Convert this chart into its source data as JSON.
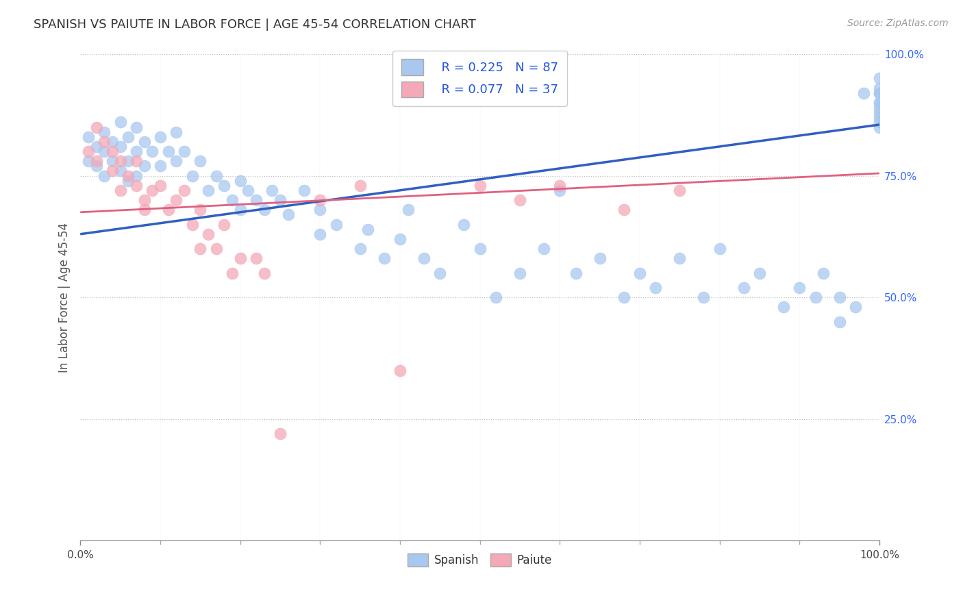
{
  "title": "SPANISH VS PAIUTE IN LABOR FORCE | AGE 45-54 CORRELATION CHART",
  "source_text": "Source: ZipAtlas.com",
  "ylabel": "In Labor Force | Age 45-54",
  "xlim": [
    0.0,
    1.0
  ],
  "ylim": [
    0.0,
    1.0
  ],
  "x_tick_labels": [
    "0.0%",
    "100.0%"
  ],
  "y_tick_labels_right": [
    "25.0%",
    "50.0%",
    "75.0%",
    "100.0%"
  ],
  "y_tick_vals_right": [
    0.25,
    0.5,
    0.75,
    1.0
  ],
  "legend_r_spanish": "R = 0.225",
  "legend_n_spanish": "N = 87",
  "legend_r_paiute": "R = 0.077",
  "legend_n_paiute": "N = 37",
  "spanish_color": "#a8c8f0",
  "paiute_color": "#f4a8b8",
  "trendline_spanish_color": "#3060c0",
  "trendline_paiute_color": "#e06080",
  "trendline_spanish_start_y": 0.63,
  "trendline_spanish_end_y": 0.855,
  "trendline_paiute_start_y": 0.675,
  "trendline_paiute_end_y": 0.755,
  "background_color": "#ffffff",
  "grid_color": "#b0b0b0",
  "title_color": "#333333",
  "axis_label_color": "#555555",
  "right_tick_color": "#3366ff",
  "spanish_x": [
    0.01,
    0.01,
    0.02,
    0.02,
    0.03,
    0.03,
    0.03,
    0.04,
    0.04,
    0.05,
    0.05,
    0.05,
    0.06,
    0.06,
    0.06,
    0.07,
    0.07,
    0.07,
    0.08,
    0.08,
    0.09,
    0.1,
    0.1,
    0.11,
    0.12,
    0.12,
    0.13,
    0.14,
    0.15,
    0.16,
    0.17,
    0.18,
    0.19,
    0.2,
    0.2,
    0.21,
    0.22,
    0.23,
    0.24,
    0.25,
    0.26,
    0.28,
    0.3,
    0.3,
    0.32,
    0.35,
    0.36,
    0.38,
    0.4,
    0.41,
    0.43,
    0.45,
    0.48,
    0.5,
    0.52,
    0.55,
    0.58,
    0.6,
    0.62,
    0.65,
    0.68,
    0.7,
    0.72,
    0.75,
    0.78,
    0.8,
    0.83,
    0.85,
    0.88,
    0.9,
    0.92,
    0.93,
    0.95,
    0.95,
    0.97,
    0.98,
    1.0,
    1.0,
    1.0,
    1.0,
    1.0,
    1.0,
    1.0,
    1.0,
    1.0,
    1.0,
    1.0
  ],
  "spanish_y": [
    0.83,
    0.78,
    0.81,
    0.77,
    0.84,
    0.8,
    0.75,
    0.82,
    0.78,
    0.86,
    0.81,
    0.76,
    0.83,
    0.78,
    0.74,
    0.85,
    0.8,
    0.75,
    0.82,
    0.77,
    0.8,
    0.83,
    0.77,
    0.8,
    0.84,
    0.78,
    0.8,
    0.75,
    0.78,
    0.72,
    0.75,
    0.73,
    0.7,
    0.74,
    0.68,
    0.72,
    0.7,
    0.68,
    0.72,
    0.7,
    0.67,
    0.72,
    0.68,
    0.63,
    0.65,
    0.6,
    0.64,
    0.58,
    0.62,
    0.68,
    0.58,
    0.55,
    0.65,
    0.6,
    0.5,
    0.55,
    0.6,
    0.72,
    0.55,
    0.58,
    0.5,
    0.55,
    0.52,
    0.58,
    0.5,
    0.6,
    0.52,
    0.55,
    0.48,
    0.52,
    0.5,
    0.55,
    0.45,
    0.5,
    0.48,
    0.92,
    0.95,
    0.92,
    0.88,
    0.9,
    0.87,
    0.85,
    0.92,
    0.89,
    0.86,
    0.9,
    0.93
  ],
  "paiute_x": [
    0.01,
    0.02,
    0.02,
    0.03,
    0.04,
    0.04,
    0.05,
    0.05,
    0.06,
    0.07,
    0.07,
    0.08,
    0.08,
    0.09,
    0.1,
    0.11,
    0.12,
    0.13,
    0.14,
    0.15,
    0.15,
    0.16,
    0.17,
    0.18,
    0.19,
    0.2,
    0.22,
    0.23,
    0.25,
    0.3,
    0.35,
    0.4,
    0.5,
    0.55,
    0.6,
    0.68,
    0.75
  ],
  "paiute_y": [
    0.8,
    0.85,
    0.78,
    0.82,
    0.76,
    0.8,
    0.78,
    0.72,
    0.75,
    0.78,
    0.73,
    0.7,
    0.68,
    0.72,
    0.73,
    0.68,
    0.7,
    0.72,
    0.65,
    0.68,
    0.6,
    0.63,
    0.6,
    0.65,
    0.55,
    0.58,
    0.58,
    0.55,
    0.22,
    0.7,
    0.73,
    0.35,
    0.73,
    0.7,
    0.73,
    0.68,
    0.72
  ]
}
